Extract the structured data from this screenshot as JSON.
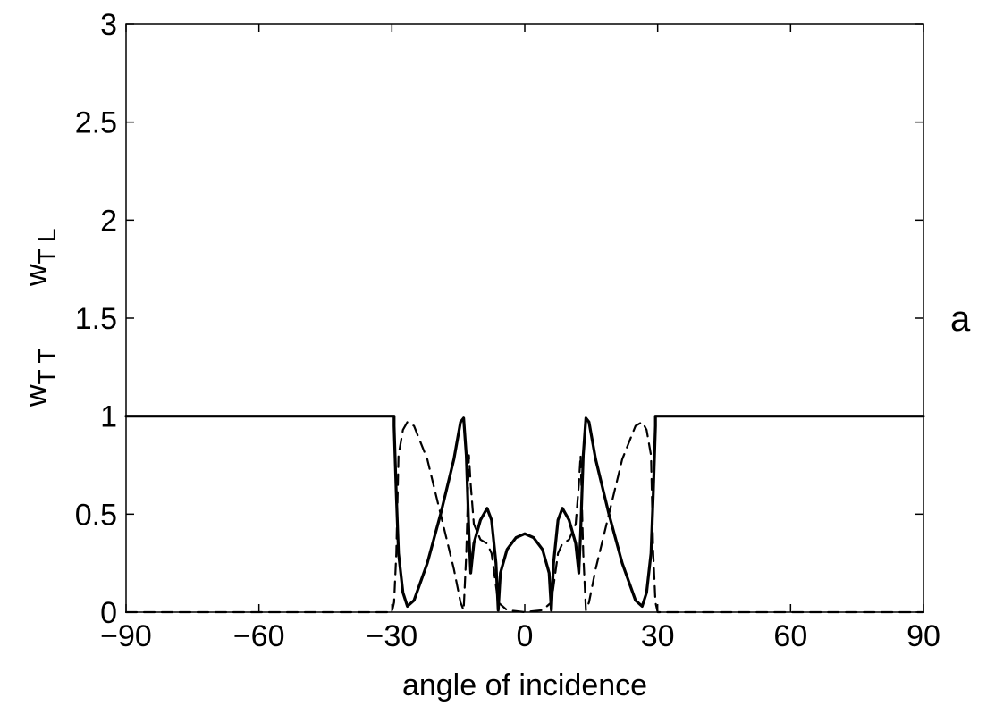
{
  "chart_data": {
    "type": "line",
    "title": "",
    "xlabel": "angle of incidence",
    "ylabel_parts": {
      "first": {
        "base": "w",
        "sub": "T T"
      },
      "second": {
        "base": "w",
        "sub": "T L"
      }
    },
    "panel_label": "a",
    "xlim": [
      -90,
      90
    ],
    "ylim": [
      0,
      3
    ],
    "xticks": [
      -90,
      -60,
      -30,
      0,
      30,
      60,
      90
    ],
    "xtick_labels": [
      "−90",
      "−60",
      "−30",
      "0",
      "30",
      "60",
      "90"
    ],
    "yticks": [
      0,
      0.5,
      1,
      1.5,
      2,
      2.5,
      3
    ],
    "ytick_labels": [
      "0",
      "0.5",
      "1",
      "1.5",
      "2",
      "2.5",
      "3"
    ],
    "grid": false,
    "legend": "none",
    "series": [
      {
        "style": "solid",
        "color": "#000000",
        "points": [
          [
            -90,
            1
          ],
          [
            -29.5,
            1
          ],
          [
            -29.5,
            0.95
          ],
          [
            -29,
            0.6
          ],
          [
            -28.5,
            0.3
          ],
          [
            -27.5,
            0.1
          ],
          [
            -26.5,
            0.03
          ],
          [
            -25,
            0.06
          ],
          [
            -22,
            0.25
          ],
          [
            -19,
            0.5
          ],
          [
            -16,
            0.78
          ],
          [
            -14.5,
            0.97
          ],
          [
            -13.8,
            0.99
          ],
          [
            -13.2,
            0.8
          ],
          [
            -12.6,
            0.4
          ],
          [
            -12.2,
            0.2
          ],
          [
            -11.5,
            0.35
          ],
          [
            -10,
            0.47
          ],
          [
            -8.5,
            0.53
          ],
          [
            -7.5,
            0.47
          ],
          [
            -6.5,
            0.25
          ],
          [
            -6,
            0.01
          ],
          [
            -5.5,
            0.2
          ],
          [
            -4,
            0.32
          ],
          [
            -2,
            0.38
          ],
          [
            0,
            0.4
          ],
          [
            2,
            0.38
          ],
          [
            4,
            0.32
          ],
          [
            5.5,
            0.2
          ],
          [
            6,
            0.01
          ],
          [
            6.5,
            0.25
          ],
          [
            7.5,
            0.47
          ],
          [
            8.5,
            0.53
          ],
          [
            10,
            0.47
          ],
          [
            11.5,
            0.35
          ],
          [
            12.2,
            0.2
          ],
          [
            12.6,
            0.4
          ],
          [
            13.2,
            0.8
          ],
          [
            13.8,
            0.99
          ],
          [
            14.5,
            0.97
          ],
          [
            16,
            0.78
          ],
          [
            19,
            0.5
          ],
          [
            22,
            0.25
          ],
          [
            25,
            0.06
          ],
          [
            26.5,
            0.03
          ],
          [
            27.5,
            0.1
          ],
          [
            28.5,
            0.3
          ],
          [
            29,
            0.6
          ],
          [
            29.5,
            0.95
          ],
          [
            29.5,
            1
          ],
          [
            90,
            1
          ]
        ]
      },
      {
        "style": "dashed",
        "color": "#000000",
        "points": [
          [
            -90,
            0
          ],
          [
            -30,
            0
          ],
          [
            -29.5,
            0.05
          ],
          [
            -29,
            0.3
          ],
          [
            -28.5,
            0.8
          ],
          [
            -27.5,
            0.93
          ],
          [
            -26.5,
            0.97
          ],
          [
            -25,
            0.95
          ],
          [
            -22,
            0.78
          ],
          [
            -19,
            0.5
          ],
          [
            -16,
            0.22
          ],
          [
            -14.5,
            0.05
          ],
          [
            -13.8,
            0.01
          ],
          [
            -13.2,
            0.3
          ],
          [
            -12.6,
            0.8
          ],
          [
            -12.2,
            0.65
          ],
          [
            -11.5,
            0.45
          ],
          [
            -10,
            0.37
          ],
          [
            -8.5,
            0.35
          ],
          [
            -7.5,
            0.3
          ],
          [
            -6,
            0.05
          ],
          [
            -4,
            0.01
          ],
          [
            -2,
            0.005
          ],
          [
            0,
            0
          ],
          [
            2,
            0.005
          ],
          [
            4,
            0.01
          ],
          [
            6,
            0.05
          ],
          [
            7.5,
            0.3
          ],
          [
            8.5,
            0.35
          ],
          [
            10,
            0.37
          ],
          [
            11.5,
            0.45
          ],
          [
            12.2,
            0.65
          ],
          [
            12.6,
            0.8
          ],
          [
            13.2,
            0.3
          ],
          [
            13.8,
            0.01
          ],
          [
            14.5,
            0.05
          ],
          [
            16,
            0.22
          ],
          [
            19,
            0.5
          ],
          [
            22,
            0.78
          ],
          [
            25,
            0.95
          ],
          [
            26.5,
            0.97
          ],
          [
            27.5,
            0.93
          ],
          [
            28.5,
            0.8
          ],
          [
            29,
            0.3
          ],
          [
            29.5,
            0.05
          ],
          [
            30,
            0
          ],
          [
            90,
            0
          ]
        ]
      }
    ]
  }
}
